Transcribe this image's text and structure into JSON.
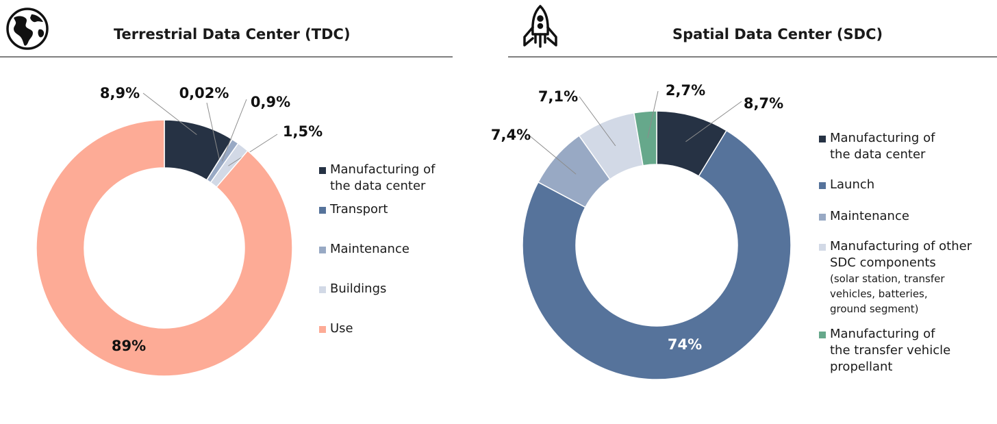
{
  "charts": [
    {
      "title": "Terrestrial Data Center (TDC)",
      "icon": "globe-icon",
      "chart_data": {
        "type": "pie",
        "variant": "donut",
        "title": "Terrestrial Data Center (TDC)",
        "legend_position": "right",
        "slices": [
          {
            "name": "Manufacturing of the data center",
            "value": 8.9,
            "label": "8,9%",
            "color": "#263244"
          },
          {
            "name": "Transport",
            "value": 0.02,
            "label": "0,02%",
            "color": "#56739b"
          },
          {
            "name": "Maintenance",
            "value": 0.9,
            "label": "0,9%",
            "color": "#98a9c4"
          },
          {
            "name": "Buildings",
            "value": 1.5,
            "label": "1,5%",
            "color": "#d2d9e6"
          },
          {
            "name": "Use",
            "value": 89,
            "label": "89%",
            "color": "#fdab96"
          }
        ]
      },
      "legend": [
        {
          "lines": [
            "Manufacturing of",
            "the data center"
          ],
          "note": [],
          "color": "#263244"
        },
        {
          "lines": [
            "Transport"
          ],
          "note": [],
          "color": "#56739b"
        },
        {
          "lines": [
            "Maintenance"
          ],
          "note": [],
          "color": "#98a9c4"
        },
        {
          "lines": [
            "Buildings"
          ],
          "note": [],
          "color": "#d2d9e6"
        },
        {
          "lines": [
            "Use"
          ],
          "note": [],
          "color": "#fdab96"
        }
      ]
    },
    {
      "title": "Spatial Data Center (SDC)",
      "icon": "rocket-icon",
      "chart_data": {
        "type": "pie",
        "variant": "donut",
        "title": "Spatial Data Center (SDC)",
        "legend_position": "right",
        "slices": [
          {
            "name": "Manufacturing of the data center",
            "value": 8.7,
            "label": "8,7%",
            "color": "#263244"
          },
          {
            "name": "Launch",
            "value": 74,
            "label": "74%",
            "color": "#56739b"
          },
          {
            "name": "Maintenance",
            "value": 7.4,
            "label": "7,4%",
            "color": "#98a9c4"
          },
          {
            "name": "Manufacturing of other SDC components (solar station, transfer vehicles, batteries, ground segment)",
            "value": 7.1,
            "label": "7,1%",
            "color": "#d2d9e6"
          },
          {
            "name": "Manufacturing of the transfer vehicle propellant",
            "value": 2.7,
            "label": "2,7%",
            "color": "#66a88b"
          }
        ]
      },
      "legend": [
        {
          "lines": [
            "Manufacturing of",
            "the data center"
          ],
          "note": [],
          "color": "#263244"
        },
        {
          "lines": [
            "Launch"
          ],
          "note": [],
          "color": "#56739b"
        },
        {
          "lines": [
            "Maintenance"
          ],
          "note": [],
          "color": "#98a9c4"
        },
        {
          "lines": [
            "Manufacturing of other",
            "SDC components"
          ],
          "note": [
            "(solar station, transfer",
            "vehicles, batteries,",
            "ground segment)"
          ],
          "color": "#d2d9e6"
        },
        {
          "lines": [
            "Manufacturing of",
            "the transfer vehicle",
            "propellant"
          ],
          "note": [],
          "color": "#66a88b"
        }
      ]
    }
  ]
}
